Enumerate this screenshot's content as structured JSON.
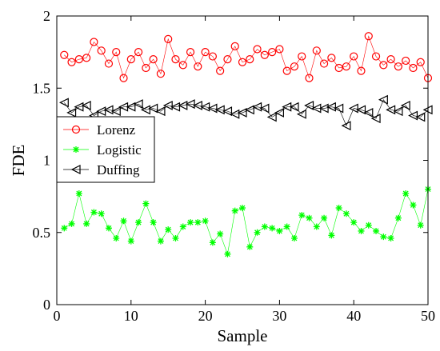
{
  "chart_data": {
    "type": "line",
    "xlabel": "Sample",
    "ylabel": "FDE",
    "xlim": [
      0,
      50
    ],
    "ylim": [
      0,
      2
    ],
    "xticks": [
      0,
      10,
      20,
      30,
      40,
      50
    ],
    "yticks": [
      0,
      0.5,
      1,
      1.5,
      2
    ],
    "x_tick_labels": [
      "0",
      "10",
      "20",
      "30",
      "40",
      "50"
    ],
    "y_tick_labels": [
      "0",
      "0.5",
      "1",
      "1.5",
      "2"
    ],
    "grid": false,
    "legend_position": "middle-left",
    "x": [
      1,
      2,
      3,
      4,
      5,
      6,
      7,
      8,
      9,
      10,
      11,
      12,
      13,
      14,
      15,
      16,
      17,
      18,
      19,
      20,
      21,
      22,
      23,
      24,
      25,
      26,
      27,
      28,
      29,
      30,
      31,
      32,
      33,
      34,
      35,
      36,
      37,
      38,
      39,
      40,
      41,
      42,
      43,
      44,
      45,
      46,
      47,
      48,
      49,
      50
    ],
    "series": [
      {
        "name": "Lorenz",
        "color": "#ff0000",
        "marker": "circle",
        "values": [
          1.73,
          1.68,
          1.7,
          1.71,
          1.82,
          1.76,
          1.67,
          1.75,
          1.57,
          1.7,
          1.75,
          1.64,
          1.7,
          1.6,
          1.84,
          1.7,
          1.66,
          1.75,
          1.65,
          1.75,
          1.72,
          1.62,
          1.7,
          1.79,
          1.68,
          1.7,
          1.77,
          1.73,
          1.75,
          1.77,
          1.62,
          1.65,
          1.72,
          1.57,
          1.76,
          1.67,
          1.71,
          1.64,
          1.65,
          1.72,
          1.62,
          1.86,
          1.72,
          1.66,
          1.7,
          1.65,
          1.69,
          1.64,
          1.68,
          1.57
        ]
      },
      {
        "name": "Logistic",
        "color": "#00ff00",
        "marker": "star",
        "values": [
          0.53,
          0.56,
          0.77,
          0.56,
          0.64,
          0.63,
          0.53,
          0.46,
          0.58,
          0.44,
          0.57,
          0.7,
          0.57,
          0.44,
          0.52,
          0.46,
          0.54,
          0.57,
          0.57,
          0.58,
          0.43,
          0.49,
          0.35,
          0.65,
          0.67,
          0.4,
          0.5,
          0.54,
          0.53,
          0.51,
          0.54,
          0.46,
          0.62,
          0.6,
          0.54,
          0.6,
          0.48,
          0.67,
          0.63,
          0.57,
          0.51,
          0.55,
          0.51,
          0.47,
          0.46,
          0.6,
          0.77,
          0.69,
          0.55,
          0.8
        ]
      },
      {
        "name": "Duffing",
        "color": "#000000",
        "marker": "triangle-left",
        "values": [
          1.4,
          1.33,
          1.37,
          1.38,
          1.31,
          1.34,
          1.35,
          1.34,
          1.37,
          1.37,
          1.39,
          1.35,
          1.36,
          1.34,
          1.38,
          1.37,
          1.38,
          1.39,
          1.38,
          1.37,
          1.36,
          1.35,
          1.34,
          1.32,
          1.33,
          1.35,
          1.37,
          1.36,
          1.3,
          1.33,
          1.37,
          1.37,
          1.32,
          1.38,
          1.36,
          1.36,
          1.37,
          1.36,
          1.24,
          1.36,
          1.35,
          1.33,
          1.29,
          1.42,
          1.35,
          1.34,
          1.38,
          1.31,
          1.3,
          1.35
        ]
      }
    ]
  }
}
